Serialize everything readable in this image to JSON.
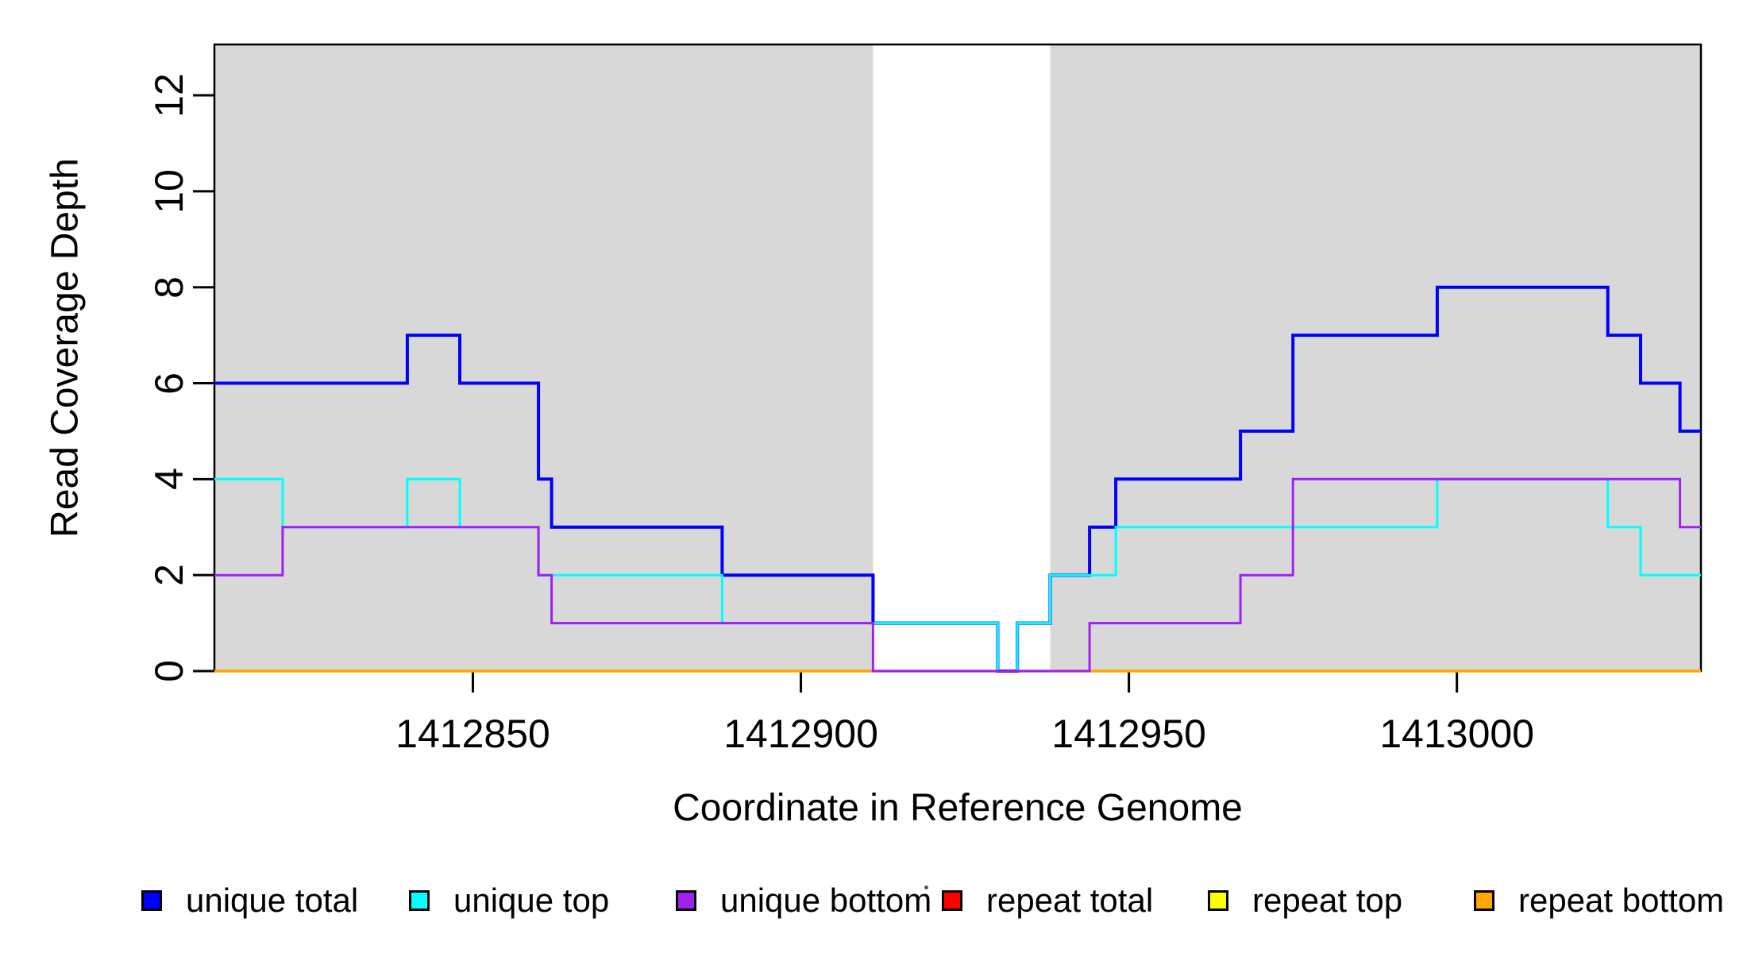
{
  "figure": {
    "y_axis_title": "Read Coverage Depth",
    "x_axis_title": "Coordinate in Reference Genome"
  },
  "legend": {
    "items": [
      {
        "label": "unique total",
        "color": "#0000ff"
      },
      {
        "label": "unique top",
        "color": "#00ffff"
      },
      {
        "label": "unique bottom",
        "color": "#a020f0"
      },
      {
        "label": "repeat total",
        "color": "#ff0000"
      },
      {
        "label": "repeat top",
        "color": "#ffff00"
      },
      {
        "label": "repeat bottom",
        "color": "#ffa500"
      }
    ]
  },
  "chart_data": {
    "type": "line",
    "subtype": "step",
    "title": "",
    "xlabel": "Coordinate in Reference Genome",
    "ylabel": "Read Coverage Depth",
    "xlim": [
      1412810.6,
      1413037.2
    ],
    "ylim": [
      0,
      13.06
    ],
    "x_ticks": [
      1412850,
      1412900,
      1412950,
      1413000
    ],
    "x_tick_labels": [
      "1412850",
      "1412900",
      "1412950",
      "1413000"
    ],
    "y_ticks": [
      0,
      2,
      4,
      6,
      8,
      10,
      12
    ],
    "y_tick_labels": [
      "0",
      "2",
      "4",
      "6",
      "8",
      "10",
      "12"
    ],
    "grid": false,
    "legend_position": "bottom",
    "plot_background": "#ffffff",
    "shaded_region_color": "#d8d8d8",
    "background_regions": [
      {
        "x0": 1412810.6,
        "x1": 1412911.0
      },
      {
        "x0": 1412938.0,
        "x1": 1413037.2
      }
    ],
    "series": [
      {
        "name": "unique total",
        "color": "#0000ff",
        "line_width": 4,
        "steps": [
          [
            1412810.6,
            6
          ],
          [
            1412840,
            7
          ],
          [
            1412848,
            6
          ],
          [
            1412860,
            4
          ],
          [
            1412862,
            3
          ],
          [
            1412888,
            2
          ],
          [
            1412911,
            1
          ],
          [
            1412930,
            0
          ],
          [
            1412933,
            1
          ],
          [
            1412938,
            2
          ],
          [
            1412944,
            3
          ],
          [
            1412948,
            4
          ],
          [
            1412967,
            5
          ],
          [
            1412975,
            7
          ],
          [
            1412997,
            8
          ],
          [
            1413023,
            7
          ],
          [
            1413028,
            6
          ],
          [
            1413034,
            5
          ]
        ],
        "x_end": 1413037.2
      },
      {
        "name": "unique top",
        "color": "#00ffff",
        "line_width": 3,
        "steps": [
          [
            1412810.6,
            4
          ],
          [
            1412821,
            3
          ],
          [
            1412840,
            4
          ],
          [
            1412848,
            3
          ],
          [
            1412860,
            2
          ],
          [
            1412888,
            1
          ],
          [
            1412930,
            0
          ],
          [
            1412933,
            1
          ],
          [
            1412938,
            2
          ],
          [
            1412948,
            3
          ],
          [
            1412997,
            4
          ],
          [
            1413023,
            3
          ],
          [
            1413028,
            2
          ]
        ],
        "x_end": 1413037.2
      },
      {
        "name": "unique bottom",
        "color": "#a020f0",
        "line_width": 3,
        "steps": [
          [
            1412810.6,
            2
          ],
          [
            1412821,
            3
          ],
          [
            1412860,
            2
          ],
          [
            1412862,
            1
          ],
          [
            1412911,
            0
          ],
          [
            1412944,
            1
          ],
          [
            1412967,
            2
          ],
          [
            1412975,
            4
          ],
          [
            1413034,
            3
          ]
        ],
        "x_end": 1413037.2
      },
      {
        "name": "repeat total",
        "color": "#ff0000",
        "line_width": 3,
        "steps": [
          [
            1412810.6,
            0
          ]
        ],
        "x_end": 1413037.2
      },
      {
        "name": "repeat top",
        "color": "#ffff00",
        "line_width": 3,
        "steps": [
          [
            1412810.6,
            0
          ]
        ],
        "x_end": 1413037.2
      },
      {
        "name": "repeat bottom",
        "color": "#ffa500",
        "line_width": 3.5,
        "steps": [
          [
            1412810.6,
            0
          ]
        ],
        "x_end": 1413037.2
      }
    ],
    "draw_order": [
      "repeat total",
      "repeat top",
      "repeat bottom",
      "unique total",
      "unique top",
      "unique bottom"
    ]
  }
}
